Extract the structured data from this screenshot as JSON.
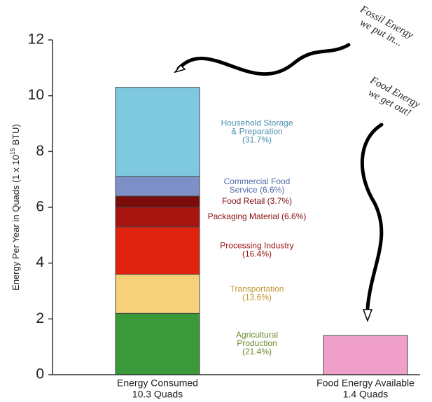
{
  "chart_data": {
    "type": "bar",
    "stacked": true,
    "ylabel": "Energy Per Year in Quads (1 x 10",
    "ylabel_exponent": "15",
    "ylabel_end": " BTU)",
    "categories": [
      "Energy Consumed",
      "Food Energy Available"
    ],
    "category_sublabels": [
      "10.3 Quads",
      "1.4 Quads"
    ],
    "ylim": [
      0,
      12
    ],
    "yticks": [
      0,
      2,
      4,
      6,
      8,
      10,
      12
    ],
    "series": [
      {
        "label": [
          "Agricultural",
          "Production",
          "(21.4%)"
        ],
        "color": "#3a9a3a",
        "label_color": "#6a8a2a",
        "values": [
          2.2,
          null
        ]
      },
      {
        "label": [
          "Transportation",
          "(13.6%)"
        ],
        "color": "#f5d27a",
        "label_color": "#c49a3a",
        "values": [
          1.4,
          null
        ]
      },
      {
        "label": [
          "Processing Industry",
          "(16.4%)"
        ],
        "color": "#e0230f",
        "label_color": "#9a1010",
        "values": [
          1.7,
          null
        ]
      },
      {
        "label": [
          "Packaging Material (6.6%)"
        ],
        "color": "#a8140f",
        "label_color": "#8a0c0c",
        "values": [
          0.7,
          null
        ]
      },
      {
        "label": [
          "Food Retail (3.7%)"
        ],
        "color": "#7a0c0c",
        "label_color": "#7a0c0c",
        "values": [
          0.4,
          null
        ]
      },
      {
        "label": [
          "Commercial Food",
          "Service (6.6%)"
        ],
        "color": "#7e8fc8",
        "label_color": "#4f6aa8",
        "values": [
          0.7,
          null
        ]
      },
      {
        "label": [
          "Household Storage",
          "& Preparation",
          "(31.7%)"
        ],
        "color": "#7ec8e0",
        "label_color": "#4a8fb0",
        "values": [
          3.2,
          null
        ]
      },
      {
        "color": "#f0a0c8",
        "values": [
          null,
          1.4
        ]
      }
    ],
    "annotations": [
      [
        "Fossil Energy",
        "we put in..."
      ],
      [
        "Food Energy",
        "we get out!"
      ]
    ]
  }
}
